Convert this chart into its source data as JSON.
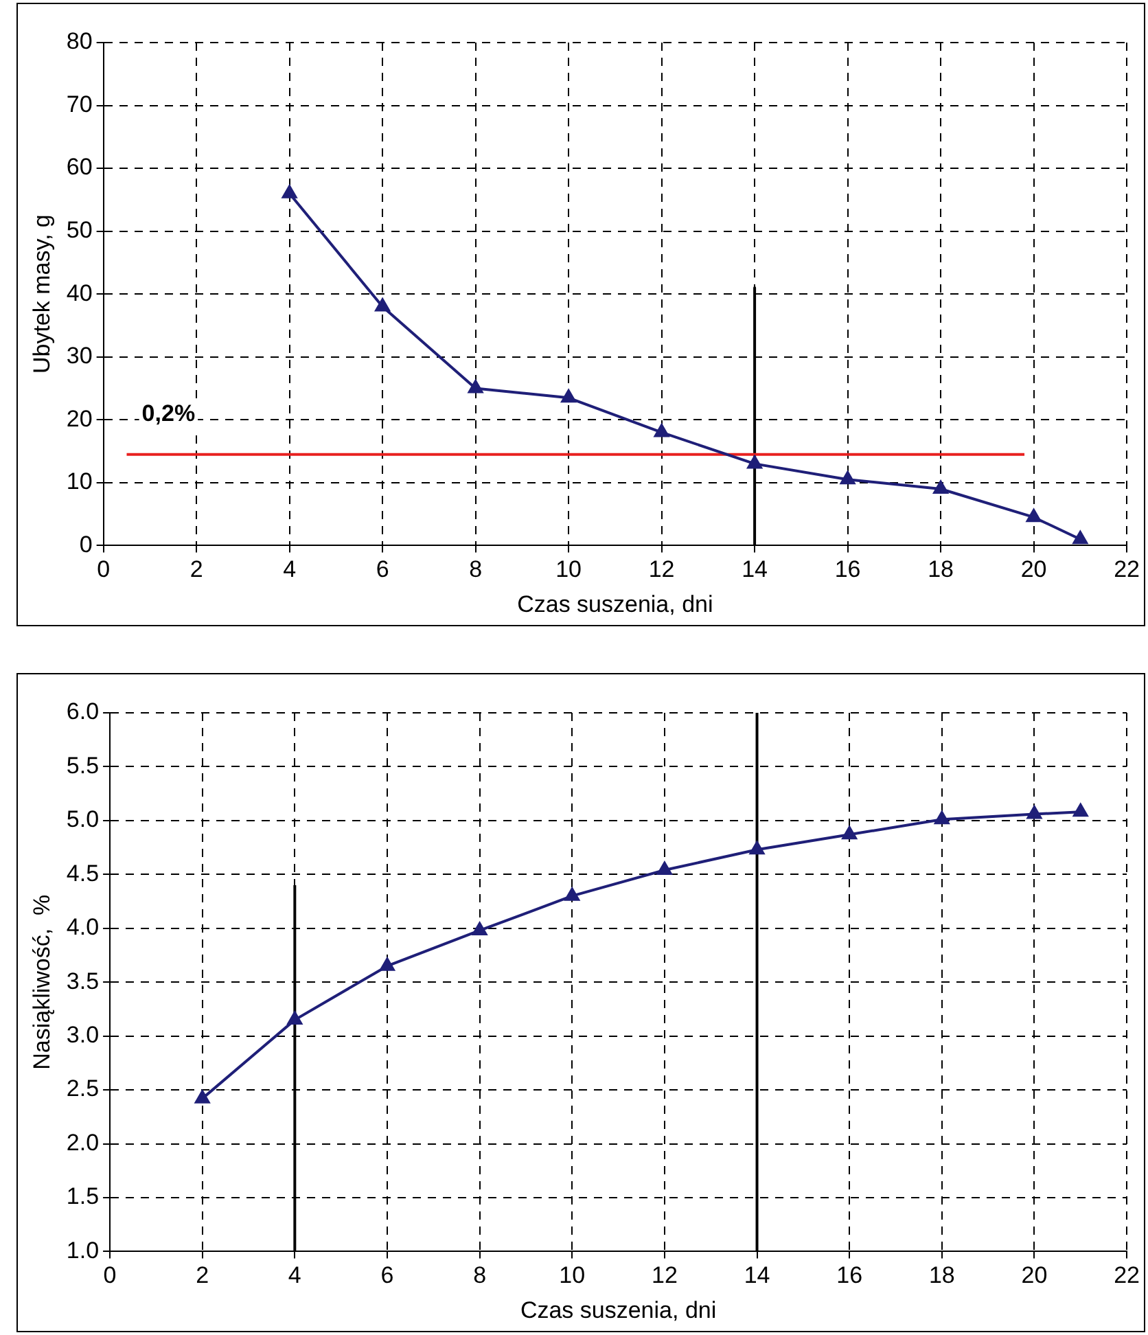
{
  "chart_data": [
    {
      "type": "line",
      "xlabel": "Czas suszenia, dni",
      "ylabel": "Ubytek masy, g",
      "xlim": [
        0,
        22
      ],
      "xticks": [
        0,
        2,
        4,
        6,
        8,
        10,
        12,
        14,
        16,
        18,
        20,
        22
      ],
      "ylim": [
        0,
        80
      ],
      "yticks": [
        0,
        10,
        20,
        30,
        40,
        50,
        60,
        70,
        80
      ],
      "grid": true,
      "legend": false,
      "marker": "triangle",
      "line_style": "solid",
      "annotations": [
        "0,2%"
      ],
      "series": [
        {
          "color": "#1f1f78",
          "x": [
            4,
            6,
            8,
            10,
            12,
            14,
            16,
            18,
            20,
            21
          ],
          "values": [
            56,
            38,
            25,
            23.5,
            18,
            13,
            10.5,
            9,
            4.5,
            1
          ]
        },
        {
          "color": "#e8201f",
          "marker": "none",
          "x": [
            0.5,
            19.8
          ],
          "values": [
            14.5,
            14.5
          ]
        },
        {
          "color": "#000000",
          "marker": "none",
          "x": [
            14,
            14
          ],
          "values": [
            41,
            0
          ]
        }
      ]
    },
    {
      "type": "line",
      "xlabel": "Czas suszenia, dni",
      "ylabel": "Nasiąkliwość,  %",
      "xlim": [
        0,
        22
      ],
      "xticks": [
        0,
        2,
        4,
        6,
        8,
        10,
        12,
        14,
        16,
        18,
        20,
        22
      ],
      "ylim": [
        1,
        6
      ],
      "yticks": [
        {
          "value": 1,
          "label": "1.0"
        },
        {
          "value": 1.5,
          "label": "1.5"
        },
        {
          "value": 2,
          "label": "2.0"
        },
        {
          "value": 2.5,
          "label": "2.5"
        },
        {
          "value": 3,
          "label": "3.0"
        },
        {
          "value": 3.5,
          "label": "3.5"
        },
        {
          "value": 4,
          "label": "4.0"
        },
        {
          "value": 4.5,
          "label": "4.5"
        },
        {
          "value": 5,
          "label": "5.0"
        },
        {
          "value": 5.5,
          "label": "5.5"
        },
        {
          "value": 6,
          "label": "6.0"
        }
      ],
      "grid": true,
      "legend": false,
      "marker": "triangle",
      "line_style": "solid",
      "series": [
        {
          "color": "#1f1f78",
          "x": [
            2,
            4,
            6,
            8,
            10,
            12,
            14,
            16,
            18,
            20,
            21
          ],
          "values": [
            2.42,
            3.15,
            3.65,
            3.98,
            4.3,
            4.54,
            4.73,
            4.87,
            5.01,
            5.06,
            5.08
          ]
        },
        {
          "color": "#000000",
          "marker": "none",
          "x": [
            4,
            4
          ],
          "values": [
            1,
            4.4
          ]
        },
        {
          "color": "#000000",
          "marker": "none",
          "x": [
            14,
            14
          ],
          "values": [
            1,
            6
          ]
        }
      ]
    }
  ]
}
